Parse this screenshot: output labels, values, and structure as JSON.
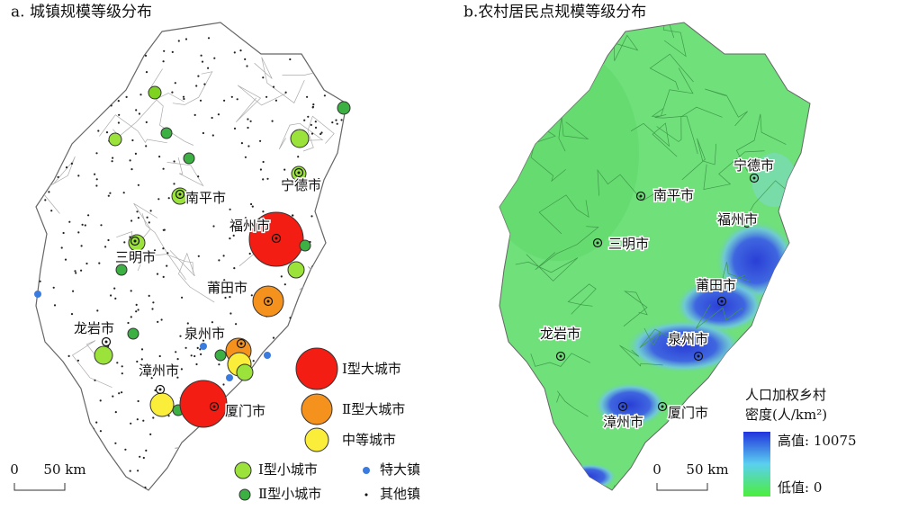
{
  "panel_a": {
    "title": "a. 城镇规模等级分布",
    "cities": [
      "南平市",
      "宁德市",
      "福州市",
      "三明市",
      "莆田市",
      "龙岩市",
      "泉州市",
      "漳州市",
      "厦门市"
    ],
    "legend": [
      "Ⅰ型大城市",
      "Ⅱ型大城市",
      "中等城市",
      "Ⅰ型小城市",
      "Ⅱ型小城市",
      "特大镇",
      "其他镇"
    ],
    "scale": {
      "start": "0",
      "end": "50 km"
    }
  },
  "panel_b": {
    "title": "b.农村居民点规模等级分布",
    "cities": [
      "宁德市",
      "南平市",
      "福州市",
      "三明市",
      "莆田市",
      "龙岩市",
      "泉州市",
      "漳州市",
      "厦门市"
    ],
    "legend": {
      "title_line1": "人口加权乡村",
      "title_line2": "密度(人/km²)",
      "high": "高值: 10075",
      "low": "低值: 0"
    },
    "scale": {
      "start": "0",
      "end": "50 km"
    }
  }
}
